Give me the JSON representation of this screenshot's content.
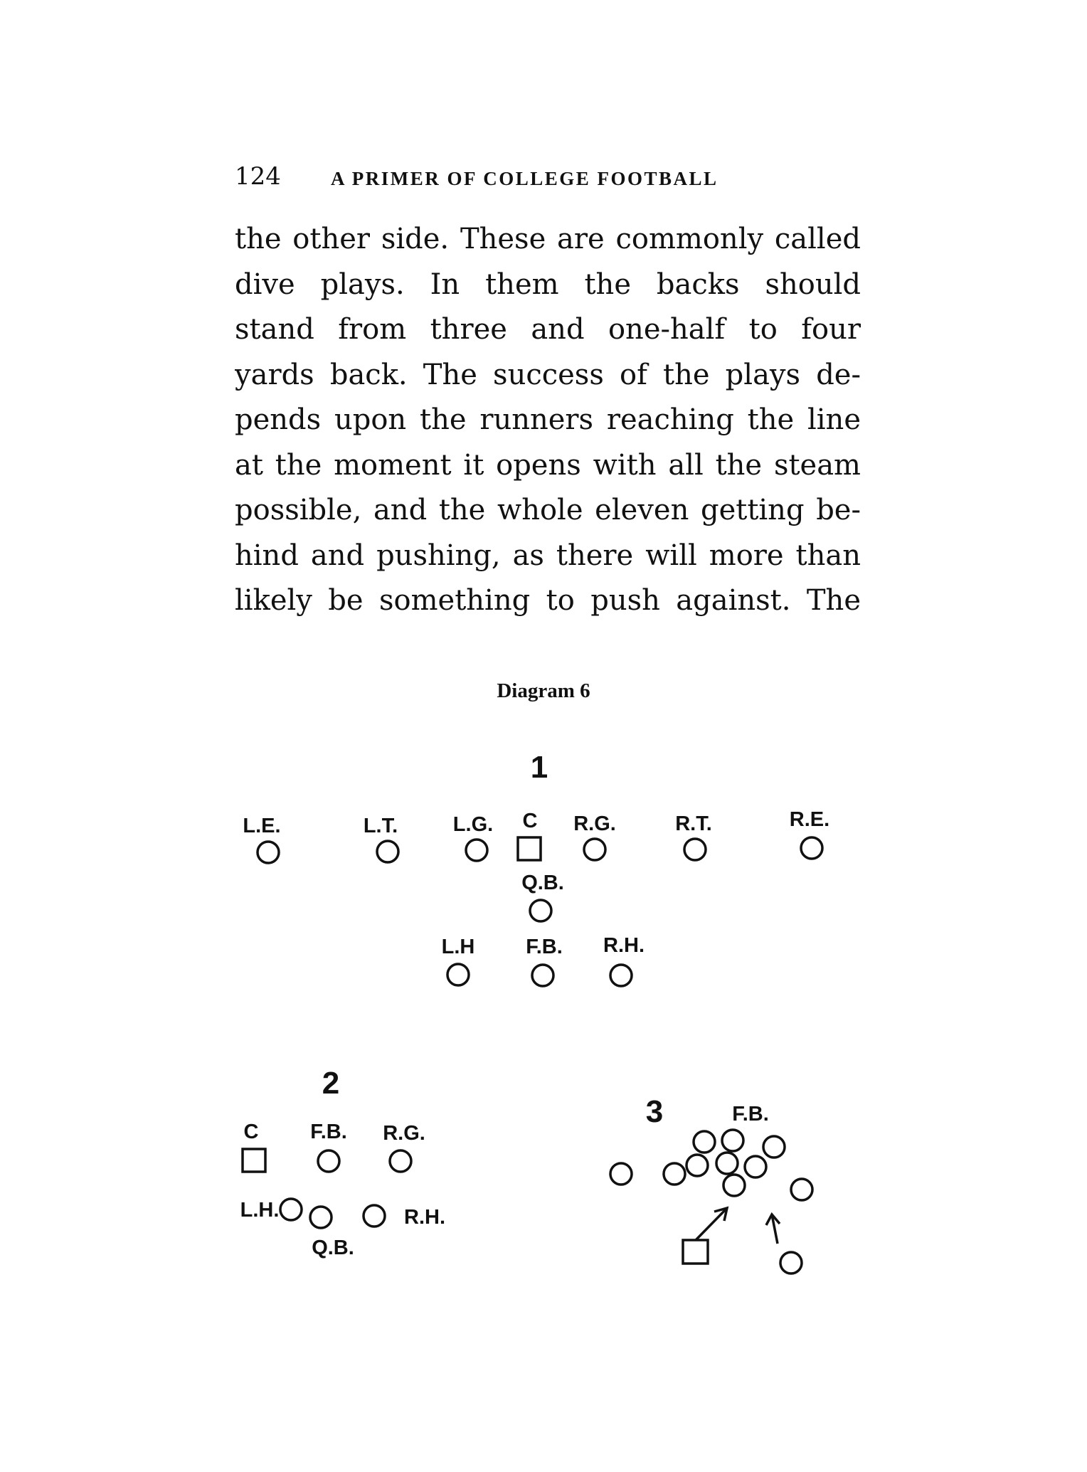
{
  "running_head": {
    "page_number": "124",
    "title": "A PRIMER OF COLLEGE FOOTBALL"
  },
  "body_lines": [
    "the other side.  These are commonly called",
    "dive plays.  In them the backs should",
    "stand from three and one-half to four",
    "yards back.  The success of the plays de-",
    "pends upon the runners reaching the line",
    "at the moment it opens with all the steam",
    "possible, and the whole eleven getting be-",
    "hind and pushing, as there will more than",
    "likely be something to push against.  The"
  ],
  "diagram": {
    "caption": "Diagram 6",
    "formation_1": {
      "number": "1",
      "labels": {
        "le": "L.E.",
        "lt": "L.T.",
        "lg": "L.G.",
        "c": "C",
        "rg": "R.G.",
        "rt": "R.T.",
        "re": "R.E.",
        "qb": "Q.B.",
        "lh": "L.H",
        "fb": "F.B.",
        "rh": "R.H."
      }
    },
    "formation_2": {
      "number": "2",
      "labels": {
        "c": "C",
        "fb": "F.B.",
        "rg": "R.G.",
        "lh": "L.H.",
        "rh": "R.H.",
        "qb": "Q.B."
      }
    },
    "formation_3": {
      "number": "3",
      "labels": {
        "fb": "F.B."
      }
    }
  }
}
